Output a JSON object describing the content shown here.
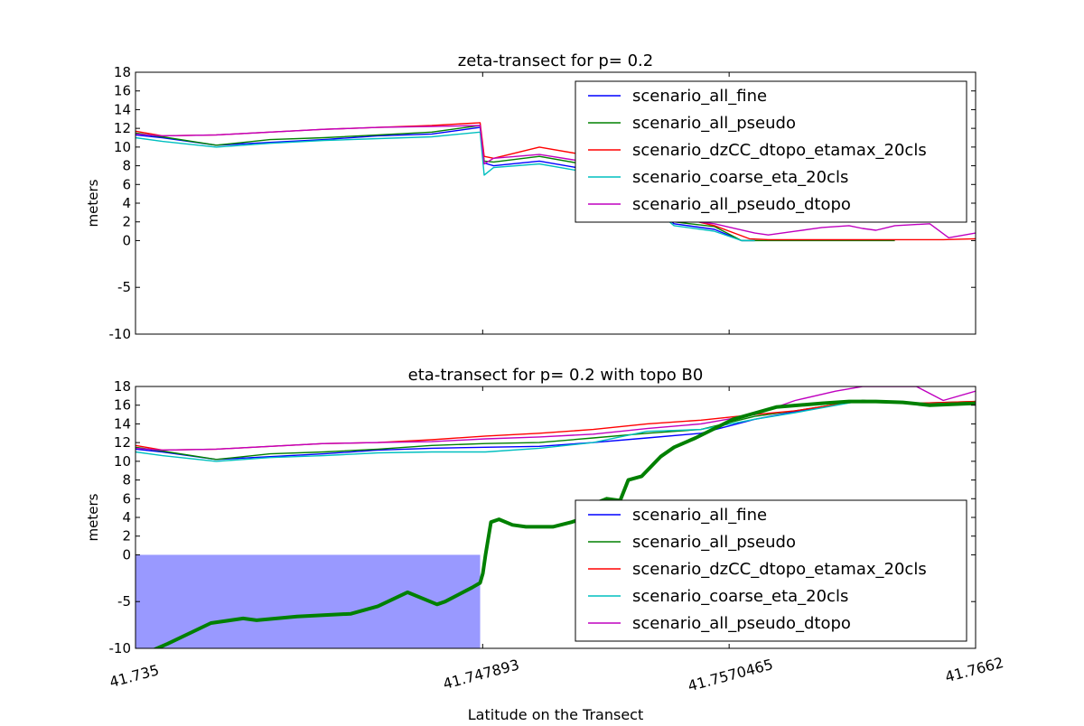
{
  "x_axis_label": "Latitude on the Transect",
  "x_ticks": [
    "41.735",
    "41.747893",
    "41.7570465",
    "41.7662"
  ],
  "colors": {
    "scenario_all_fine": "#0000ff",
    "scenario_all_pseudo": "#008000",
    "scenario_dzCC_dtopo_etamax_20cls": "#ff0000",
    "scenario_coarse_eta_20cls": "#00bfbf",
    "scenario_all_pseudo_dtopo": "#bf00bf",
    "topo_B0": "#008000",
    "water_fill": "#9999ff"
  },
  "chart_data": [
    {
      "type": "line",
      "title": "zeta-transect for p= 0.2",
      "ylabel": "meters",
      "xlim": [
        41.735,
        41.7662
      ],
      "ylim": [
        -10,
        18
      ],
      "y_ticks": [
        "18",
        "16",
        "14",
        "12",
        "10",
        "8",
        "6",
        "4",
        "2",
        "0",
        "-5",
        "-10"
      ],
      "legend": [
        "scenario_all_fine",
        "scenario_all_pseudo",
        "scenario_dzCC_dtopo_etamax_20cls",
        "scenario_coarse_eta_20cls",
        "scenario_all_pseudo_dtopo"
      ],
      "legend_position": "upper-right",
      "series": [
        {
          "name": "scenario_all_fine",
          "x": [
            41.735,
            41.736,
            41.738,
            41.74,
            41.742,
            41.744,
            41.746,
            41.7478,
            41.74795,
            41.7483,
            41.75,
            41.752,
            41.7535,
            41.755,
            41.7565,
            41.7575,
            41.758
          ],
          "y": [
            11.3,
            11.0,
            10.2,
            10.5,
            10.8,
            11.2,
            11.4,
            12.1,
            8.3,
            8.0,
            8.5,
            7.5,
            5.5,
            1.8,
            1.2,
            0,
            0
          ]
        },
        {
          "name": "scenario_all_pseudo",
          "x": [
            41.735,
            41.736,
            41.738,
            41.74,
            41.742,
            41.744,
            41.746,
            41.7478,
            41.74795,
            41.7483,
            41.75,
            41.752,
            41.7535,
            41.755,
            41.7565,
            41.7575,
            41.758,
            41.7625,
            41.7632
          ],
          "y": [
            11.5,
            11.1,
            10.2,
            10.8,
            11.0,
            11.3,
            11.6,
            12.3,
            8.5,
            8.4,
            9.0,
            8.0,
            6.0,
            2.0,
            1.5,
            0,
            0,
            0,
            0
          ]
        },
        {
          "name": "scenario_dzCC_dtopo_etamax_20cls",
          "x": [
            41.735,
            41.736,
            41.738,
            41.74,
            41.742,
            41.744,
            41.746,
            41.7478,
            41.74795,
            41.7483,
            41.75,
            41.752,
            41.7535,
            41.755,
            41.7565,
            41.7578,
            41.7585,
            41.7629,
            41.7635,
            41.765,
            41.7662
          ],
          "y": [
            11.7,
            11.2,
            11.3,
            11.6,
            11.9,
            12.1,
            12.3,
            12.6,
            9.0,
            8.8,
            10.0,
            9.0,
            6.8,
            2.6,
            1.6,
            0.2,
            0.1,
            0.1,
            0.1,
            0.1,
            0.2
          ]
        },
        {
          "name": "scenario_coarse_eta_20cls",
          "x": [
            41.735,
            41.736,
            41.738,
            41.74,
            41.742,
            41.744,
            41.746,
            41.7478,
            41.74795,
            41.7483,
            41.75,
            41.752,
            41.7535,
            41.755,
            41.7565,
            41.7575,
            41.758
          ],
          "y": [
            11.0,
            10.6,
            10.0,
            10.4,
            10.7,
            10.9,
            11.1,
            11.6,
            7.0,
            7.8,
            8.2,
            7.2,
            5.2,
            1.6,
            1.0,
            0,
            0
          ]
        },
        {
          "name": "scenario_all_pseudo_dtopo",
          "x": [
            41.735,
            41.736,
            41.738,
            41.74,
            41.742,
            41.744,
            41.746,
            41.7478,
            41.74795,
            41.7483,
            41.75,
            41.752,
            41.7535,
            41.755,
            41.7565,
            41.758,
            41.7585,
            41.7595,
            41.7605,
            41.7615,
            41.762,
            41.7625,
            41.7632,
            41.7645,
            41.7652,
            41.7662
          ],
          "y": [
            11.4,
            11.2,
            11.3,
            11.6,
            11.9,
            12.1,
            12.2,
            12.3,
            8.2,
            8.8,
            9.2,
            8.3,
            6.2,
            2.3,
            1.8,
            0.8,
            0.6,
            1.0,
            1.4,
            1.6,
            1.3,
            1.1,
            1.6,
            1.8,
            0.3,
            0.8
          ]
        }
      ]
    },
    {
      "type": "line",
      "title": "eta-transect for p= 0.2 with topo B0",
      "ylabel": "meters",
      "xlim": [
        41.735,
        41.7662
      ],
      "ylim": [
        -10,
        18
      ],
      "y_ticks": [
        "18",
        "16",
        "14",
        "12",
        "10",
        "8",
        "6",
        "4",
        "2",
        "0",
        "-5",
        "-10"
      ],
      "legend": [
        "scenario_all_fine",
        "scenario_all_pseudo",
        "scenario_dzCC_dtopo_etamax_20cls",
        "scenario_coarse_eta_20cls",
        "scenario_all_pseudo_dtopo"
      ],
      "legend_position": "lower-right",
      "series": [
        {
          "name": "scenario_all_fine",
          "x": [
            41.735,
            41.736,
            41.738,
            41.74,
            41.742,
            41.744,
            41.746,
            41.748,
            41.75,
            41.752,
            41.754,
            41.756,
            41.758,
            41.7595,
            41.762,
            41.764,
            41.7662
          ],
          "y": [
            11.3,
            11.0,
            10.2,
            10.5,
            10.8,
            11.2,
            11.4,
            11.5,
            11.6,
            12.0,
            12.5,
            13.0,
            14.5,
            15.3,
            16.5,
            16.1,
            16.3
          ]
        },
        {
          "name": "scenario_all_pseudo",
          "x": [
            41.735,
            41.736,
            41.738,
            41.74,
            41.742,
            41.744,
            41.746,
            41.748,
            41.75,
            41.752,
            41.754,
            41.756,
            41.758,
            41.7595,
            41.762,
            41.764,
            41.7662
          ],
          "y": [
            11.5,
            11.1,
            10.2,
            10.8,
            11.0,
            11.3,
            11.7,
            11.9,
            12.0,
            12.5,
            13.0,
            13.4,
            14.8,
            15.4,
            16.5,
            16.2,
            16.4
          ]
        },
        {
          "name": "scenario_dzCC_dtopo_etamax_20cls",
          "x": [
            41.735,
            41.736,
            41.738,
            41.74,
            41.742,
            41.744,
            41.746,
            41.748,
            41.75,
            41.752,
            41.754,
            41.756,
            41.758,
            41.7595,
            41.762,
            41.764,
            41.7662
          ],
          "y": [
            11.7,
            11.2,
            11.3,
            11.6,
            11.9,
            12.0,
            12.3,
            12.7,
            13.0,
            13.4,
            14.0,
            14.4,
            15.0,
            15.4,
            16.5,
            16.2,
            16.4
          ]
        },
        {
          "name": "scenario_coarse_eta_20cls",
          "x": [
            41.735,
            41.736,
            41.738,
            41.74,
            41.742,
            41.744,
            41.746,
            41.748,
            41.75,
            41.752,
            41.754,
            41.756,
            41.758,
            41.7595,
            41.762,
            41.764,
            41.7662
          ],
          "y": [
            11.0,
            10.6,
            10.0,
            10.4,
            10.6,
            10.9,
            11.0,
            11.0,
            11.4,
            12.0,
            13.2,
            13.4,
            14.5,
            15.2,
            16.5,
            16.1,
            16.3
          ]
        },
        {
          "name": "scenario_all_pseudo_dtopo",
          "x": [
            41.735,
            41.736,
            41.738,
            41.74,
            41.742,
            41.744,
            41.746,
            41.748,
            41.75,
            41.752,
            41.754,
            41.756,
            41.758,
            41.7595,
            41.761,
            41.762,
            41.764,
            41.765,
            41.7662
          ],
          "y": [
            11.4,
            11.2,
            11.3,
            11.6,
            11.9,
            12.0,
            12.1,
            12.4,
            12.6,
            12.9,
            13.5,
            14.0,
            15.0,
            16.5,
            17.5,
            18.0,
            18.0,
            16.5,
            17.5
          ]
        },
        {
          "name": "topo B0",
          "x": [
            41.735,
            41.7362,
            41.7378,
            41.739,
            41.7395,
            41.741,
            41.743,
            41.744,
            41.7451,
            41.7462,
            41.7465,
            41.7475,
            41.7478,
            41.7479,
            41.748,
            41.7482,
            41.7485,
            41.749,
            41.7495,
            41.7505,
            41.7512,
            41.7515,
            41.7518,
            41.7525,
            41.753,
            41.7533,
            41.7538,
            41.7545,
            41.755,
            41.7558,
            41.7572,
            41.7588,
            41.7605,
            41.7615,
            41.7625,
            41.7635,
            41.7645,
            41.7662
          ],
          "y": [
            -11.0,
            -9.5,
            -7.3,
            -6.8,
            -7.0,
            -6.6,
            -6.3,
            -5.5,
            -4.0,
            -5.3,
            -5.0,
            -3.5,
            -3.0,
            -2.0,
            0,
            3.5,
            3.8,
            3.2,
            3.0,
            3.0,
            3.5,
            3.8,
            5.2,
            6.0,
            5.8,
            8.0,
            8.4,
            10.5,
            11.5,
            12.5,
            14.5,
            15.8,
            16.2,
            16.4,
            16.4,
            16.3,
            16.0,
            16.2
          ]
        }
      ],
      "fill": {
        "name": "water",
        "x": [
          41.735,
          41.7478
        ],
        "y0": 0,
        "bottom": -10
      }
    }
  ]
}
